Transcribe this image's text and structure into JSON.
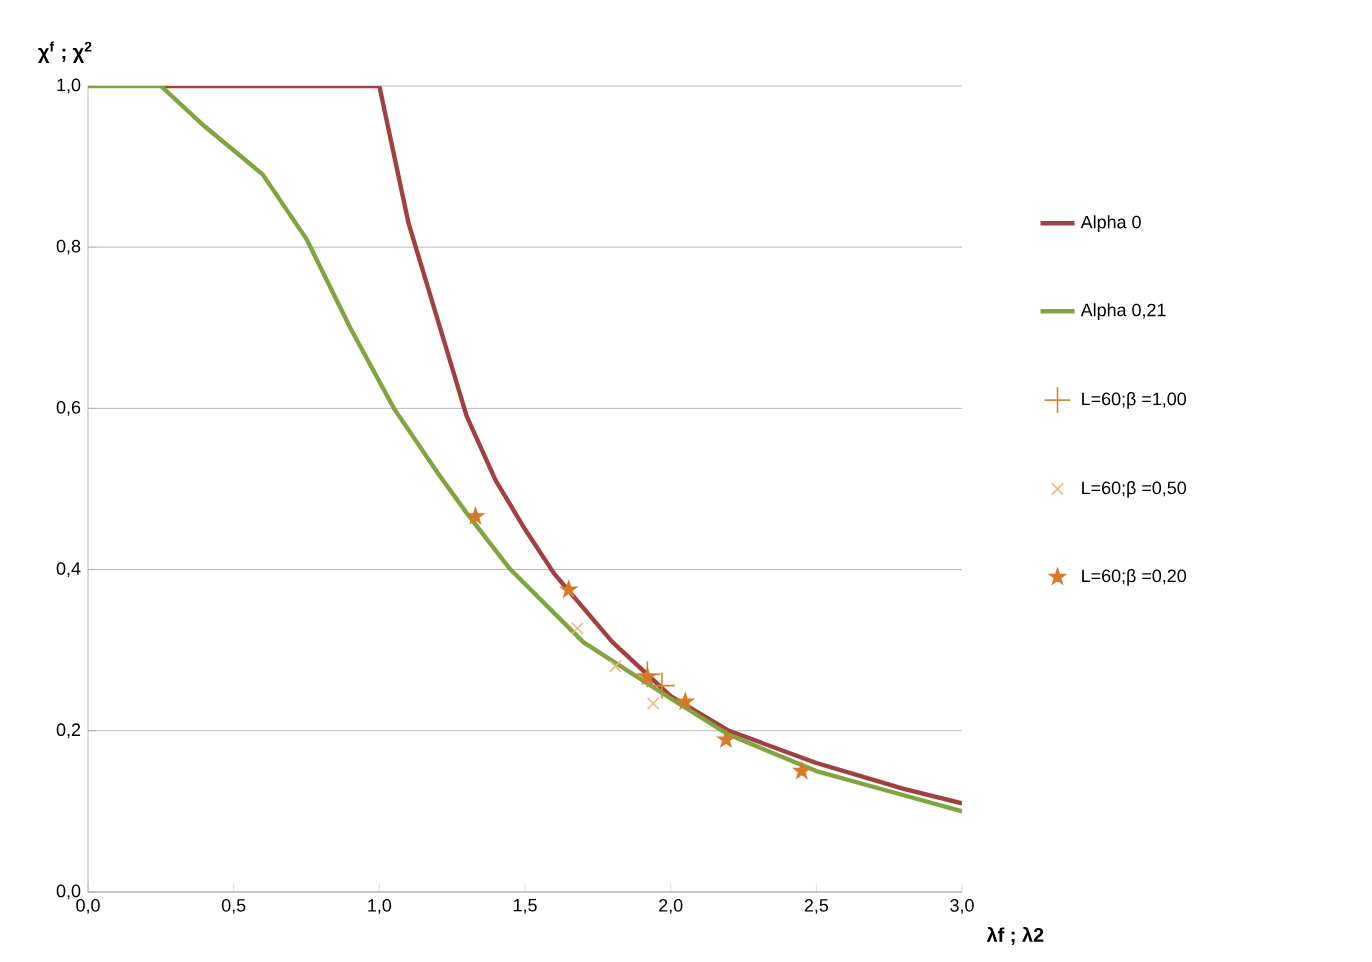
{
  "chart_data": {
    "type": "line",
    "xlabel": "λf ; λ2",
    "ylabel": "χ$^{f}$ ; χ$^{2}$",
    "xlim": [
      0,
      3
    ],
    "ylim": [
      0,
      1
    ],
    "xticks": [
      {
        "value": 0,
        "label": "0,0"
      },
      {
        "value": 0.5,
        "label": "0,5"
      },
      {
        "value": 1,
        "label": "1,0"
      },
      {
        "value": 1.5,
        "label": "1,5"
      },
      {
        "value": 2,
        "label": "2,0"
      },
      {
        "value": 2.5,
        "label": "2,5"
      },
      {
        "value": 3,
        "label": "3,0"
      }
    ],
    "yticks": [
      {
        "value": 0,
        "label": "0,0"
      },
      {
        "value": 0.2,
        "label": "0,2"
      },
      {
        "value": 0.4,
        "label": "0,4"
      },
      {
        "value": 0.6,
        "label": "0,6"
      },
      {
        "value": 0.8,
        "label": "0,8"
      },
      {
        "value": 1,
        "label": "1,0"
      }
    ],
    "grid": "y",
    "legend": "right",
    "series": [
      {
        "name": "Alpha 0",
        "color": "#a0403f",
        "marker": "none",
        "x": [
          0.25,
          1.0,
          1.1,
          1.2,
          1.3,
          1.4,
          1.5,
          1.6,
          1.8,
          2.0,
          2.2,
          2.5,
          2.8,
          3.0
        ],
        "values": [
          1,
          1,
          0.83,
          0.71,
          0.59,
          0.51,
          0.45,
          0.395,
          0.31,
          0.243,
          0.2,
          0.16,
          0.128,
          0.11
        ]
      },
      {
        "name": "Alpha 0,21",
        "color": "#7fa540",
        "marker": "none",
        "x": [
          0,
          0.25,
          0.4,
          0.6,
          0.75,
          0.9,
          1.05,
          1.2,
          1.3,
          1.45,
          1.7,
          2.0,
          2.2,
          2.5,
          2.8,
          3.0
        ],
        "values": [
          1,
          1,
          0.95,
          0.89,
          0.81,
          0.7,
          0.6,
          0.52,
          0.47,
          0.4,
          0.31,
          0.24,
          0.195,
          0.15,
          0.12,
          0.1
        ]
      },
      {
        "name": "L=60;β =1,00",
        "type": "scatter",
        "color": "#d08a2c",
        "marker": "plus",
        "x": [
          1.92,
          1.97
        ],
        "values": [
          0.27,
          0.256
        ]
      },
      {
        "name": "L=60;β =0,50",
        "type": "scatter",
        "color": "#f0b880",
        "marker": "cross",
        "x": [
          1.68,
          1.81,
          1.94
        ],
        "values": [
          0.327,
          0.28,
          0.234
        ]
      },
      {
        "name": "L=60;β =0,20",
        "type": "scatter",
        "color": "#d9782a",
        "marker": "star",
        "x": [
          1.33,
          1.65,
          1.92,
          2.05,
          2.19,
          2.45
        ],
        "values": [
          0.466,
          0.375,
          0.267,
          0.236,
          0.189,
          0.15
        ]
      }
    ]
  }
}
